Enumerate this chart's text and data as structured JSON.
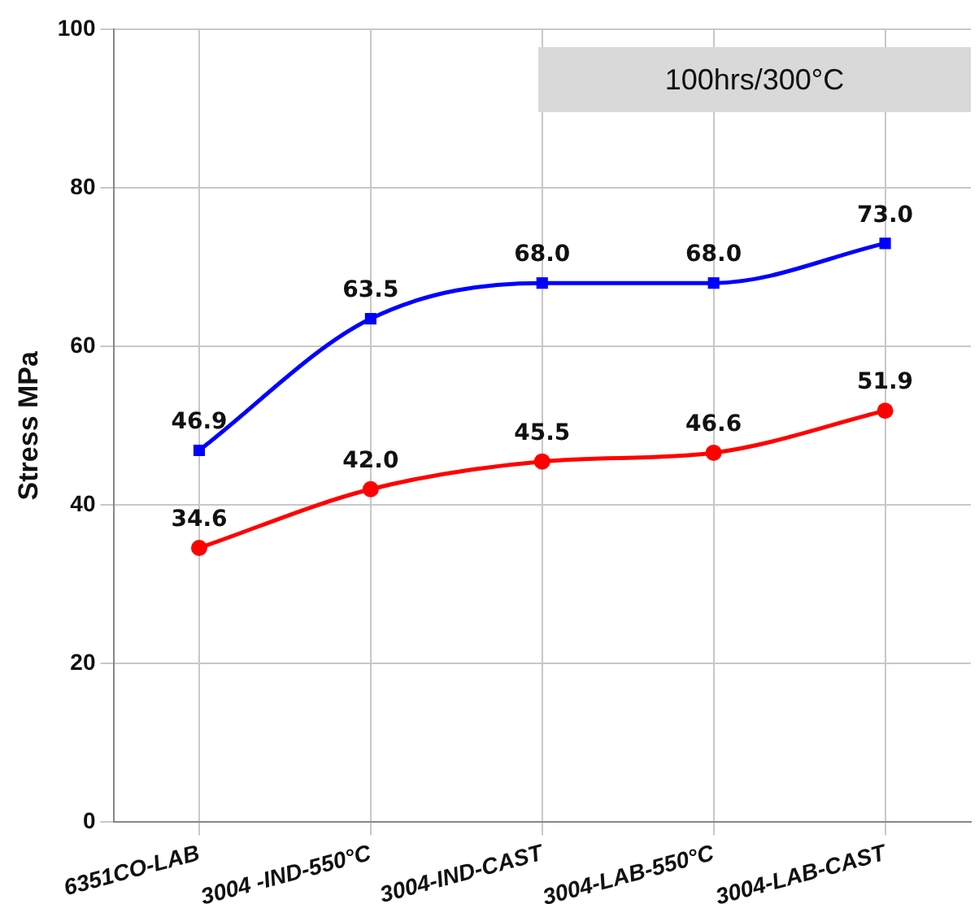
{
  "chart_data": {
    "type": "line",
    "ylabel": "Stress MPa",
    "categories": [
      "6351CO-LAB",
      "3004 -IND-550°C",
      "3004-IND-CAST",
      "3004-LAB-550°C",
      "3004-LAB-CAST"
    ],
    "series": [
      {
        "color": "#0000ff",
        "values": [
          46.9,
          63.5,
          68.0,
          68.0,
          73.0
        ],
        "value_labels": [
          "46.9",
          "63.5",
          "68.0",
          "68.0",
          "73.0"
        ],
        "marker": "square"
      },
      {
        "color": "#ff0000",
        "values": [
          34.6,
          42.0,
          45.5,
          46.6,
          51.9
        ],
        "value_labels": [
          "34.6",
          "42.0",
          "45.5",
          "46.6",
          "51.9"
        ],
        "marker": "circle"
      }
    ],
    "ylim": [
      0,
      100
    ],
    "yticks": [
      0,
      20,
      40,
      60,
      80,
      100
    ],
    "grid": true,
    "legend": false,
    "annotations": [
      "100hrs/300°C"
    ]
  }
}
